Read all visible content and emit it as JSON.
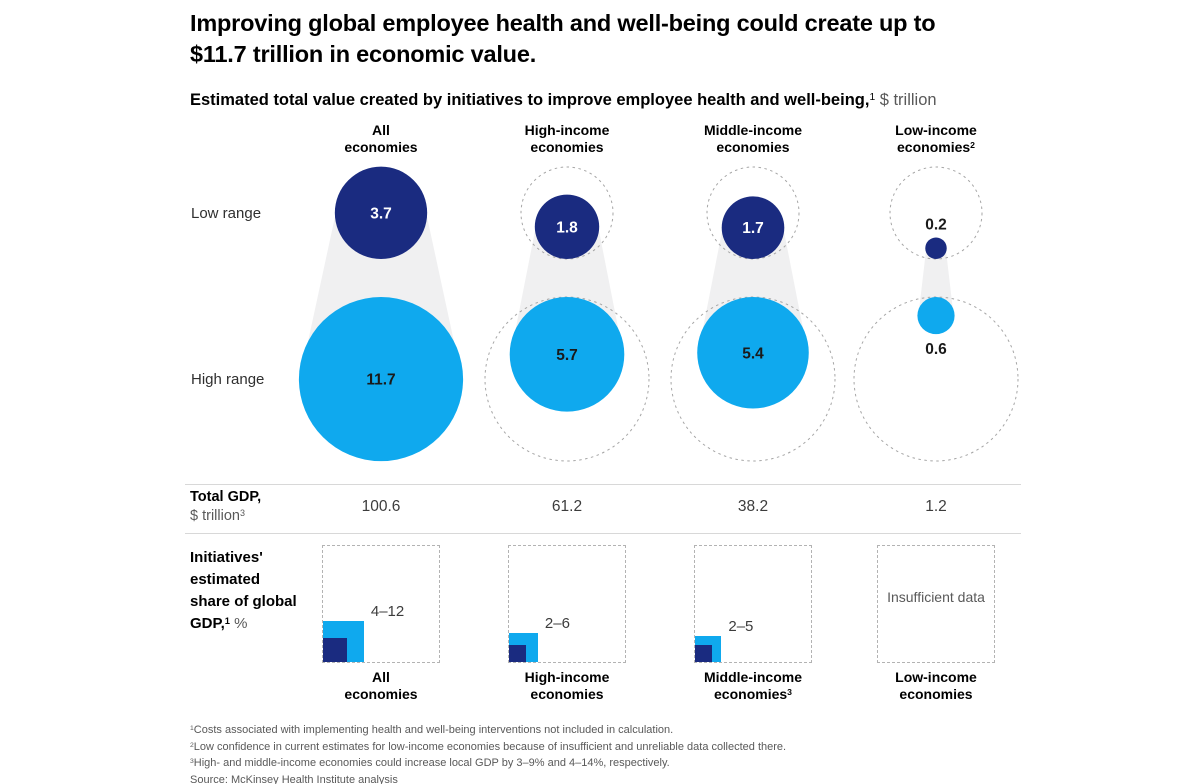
{
  "title": {
    "line1": "Improving global employee health and well-being could create up to",
    "line2": "$11.7 trillion in economic value."
  },
  "subtitle": {
    "bold": "Estimated total value created by initiatives to improve employee health and well-being,",
    "sup": "1",
    "unit": " $ trillion"
  },
  "gdp_row": {
    "label_bold": "Total GDP,",
    "label_unit": "$ trillion",
    "label_sup": "3"
  },
  "share_row": {
    "label_lines": [
      "Initiatives'",
      "estimated",
      "share of global"
    ],
    "label_last": "GDP,",
    "label_sup": "1",
    "label_unit": " %"
  },
  "chart_data": {
    "type": "bubble",
    "title": "Estimated total value created by initiatives to improve employee health and well-being, $ trillion",
    "low_label": "Low range",
    "high_label": "High range",
    "size_encoding": "circle area proportional to $ trillion value; dashed outlines show All-economies reference size",
    "columns": [
      {
        "header_lines": [
          "All",
          "economies"
        ],
        "header_sup": "",
        "low": 3.7,
        "high": 11.7,
        "gdp": 100.6,
        "share_label": "4–12",
        "share_range": [
          4,
          12
        ],
        "reference_outline": false,
        "footer_lines": [
          "All",
          "economies"
        ],
        "footer_sup": ""
      },
      {
        "header_lines": [
          "High-income",
          "economies"
        ],
        "header_sup": "",
        "low": 1.8,
        "high": 5.7,
        "gdp": 61.2,
        "share_label": "2–6",
        "share_range": [
          2,
          6
        ],
        "reference_outline": true,
        "footer_lines": [
          "High-income",
          "economies"
        ],
        "footer_sup": ""
      },
      {
        "header_lines": [
          "Middle-income",
          "economies"
        ],
        "header_sup": "",
        "low": 1.7,
        "high": 5.4,
        "gdp": 38.2,
        "share_label": "2–5",
        "share_range": [
          2,
          5
        ],
        "reference_outline": true,
        "footer_lines": [
          "Middle-income",
          "economies"
        ],
        "footer_sup": "3"
      },
      {
        "header_lines": [
          "Low-income",
          "economies"
        ],
        "header_sup": "2",
        "low": 0.2,
        "high": 0.6,
        "gdp": 1.2,
        "share_label": null,
        "share_range": null,
        "insufficient_text": "Insufficient data",
        "reference_outline": true,
        "footer_lines": [
          "Low-income",
          "economies"
        ],
        "footer_sup": ""
      }
    ]
  },
  "footnotes": [
    {
      "sup": "1",
      "text": "Costs associated with implementing health and well-being interventions not included in calculation."
    },
    {
      "sup": "2",
      "text": "Low confidence in current estimates for low-income economies because of insufficient and unreliable data collected there."
    },
    {
      "sup": "3",
      "text": "High- and middle-income economies could increase local GDP by 3–9% and 4–14%, respectively."
    },
    {
      "sup": "",
      "text": "Source: McKinsey Health Institute analysis"
    }
  ],
  "colors": {
    "navy": "#1A2B80",
    "cyan": "#0FA9EE",
    "funnel": "#F0F0F1",
    "dash": "#A6A6A6",
    "rule": "#D8D8D8",
    "muted_text": "#595959",
    "value_text": "#3C3C3C"
  }
}
